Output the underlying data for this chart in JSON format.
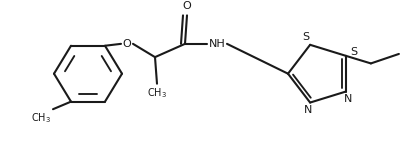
{
  "bg_color": "#ffffff",
  "line_color": "#1a1a1a",
  "line_width": 1.5,
  "figsize": [
    4.09,
    1.42
  ],
  "dpi": 100,
  "xlim": [
    0,
    409
  ],
  "ylim": [
    0,
    142
  ]
}
